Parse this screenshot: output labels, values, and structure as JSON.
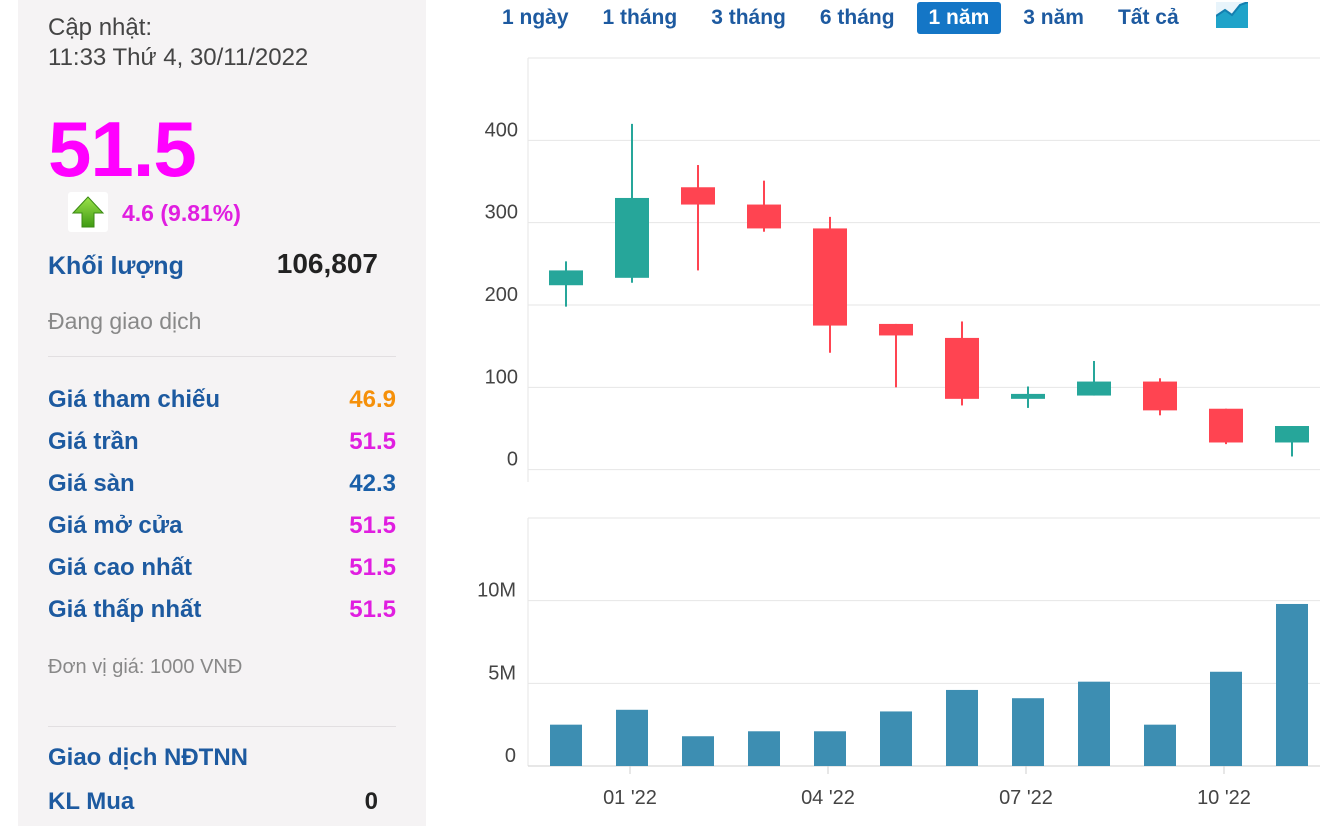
{
  "stock": {
    "update_label": "Cập nhật:",
    "update_time": "11:33 Thứ 4, 30/11/2022",
    "price": "51.5",
    "change": "4.6 (9.81%)",
    "volume_label": "Khối lượng",
    "volume_value": "106,807",
    "status": "Đang giao dịch",
    "rows": [
      {
        "label": "Giá tham chiếu",
        "value": "46.9",
        "color": "#f5900a"
      },
      {
        "label": "Giá trần",
        "value": "51.5",
        "color": "#e01ee0"
      },
      {
        "label": "Giá sàn",
        "value": "42.3",
        "color": "#1a5fa8"
      },
      {
        "label": "Giá mở cửa",
        "value": "51.5",
        "color": "#e01ee0"
      },
      {
        "label": "Giá cao nhất",
        "value": "51.5",
        "color": "#e01ee0"
      },
      {
        "label": "Giá thấp nhất",
        "value": "51.5",
        "color": "#e01ee0"
      }
    ],
    "unit_note": "Đơn vị giá: 1000 VNĐ",
    "foreign_title": "Giao dịch NĐTNN",
    "foreign_buy_label": "KL Mua",
    "foreign_buy_value": "0"
  },
  "ranges": {
    "items": [
      "1 ngày",
      "1 tháng",
      "3 tháng",
      "6 tháng",
      "1 năm",
      "3 năm",
      "Tất cả"
    ],
    "active": "1 năm"
  },
  "colors": {
    "up": "#26a69a",
    "down": "#ff4451",
    "volume": "#3d8eb2",
    "accent": "#1476c6"
  },
  "chart_data": {
    "type": "candlestick",
    "x_tick_labels": [
      "01 '22",
      "04 '22",
      "07 '22",
      "10 '22"
    ],
    "x_tick_index": [
      1,
      4,
      7,
      10
    ],
    "price_axis": {
      "ticks": [
        0,
        100,
        200,
        300,
        400
      ],
      "ylim": [
        -15,
        500
      ]
    },
    "volume_axis": {
      "ticks": [
        0,
        5000000,
        10000000
      ],
      "tick_labels": [
        "0",
        "5M",
        "10M"
      ],
      "ylim": [
        0,
        15000000
      ]
    },
    "candles": [
      {
        "open": 224,
        "high": 253,
        "low": 198,
        "close": 242,
        "volume": 2500000
      },
      {
        "open": 233,
        "high": 420,
        "low": 227,
        "close": 330,
        "volume": 3400000
      },
      {
        "open": 343,
        "high": 370,
        "low": 242,
        "close": 322,
        "volume": 1800000
      },
      {
        "open": 322,
        "high": 351,
        "low": 289,
        "close": 293,
        "volume": 2100000
      },
      {
        "open": 293,
        "high": 307,
        "low": 142,
        "close": 175,
        "volume": 2100000
      },
      {
        "open": 177,
        "high": 177,
        "low": 100,
        "close": 163,
        "volume": 3300000
      },
      {
        "open": 160,
        "high": 180,
        "low": 78,
        "close": 86,
        "volume": 4600000
      },
      {
        "open": 86,
        "high": 101,
        "low": 75,
        "close": 92,
        "volume": 4100000
      },
      {
        "open": 90,
        "high": 132,
        "low": 90,
        "close": 107,
        "volume": 5100000
      },
      {
        "open": 107,
        "high": 111,
        "low": 66,
        "close": 72,
        "volume": 2500000
      },
      {
        "open": 74,
        "high": 74,
        "low": 31,
        "close": 33,
        "volume": 5700000
      },
      {
        "open": 33,
        "high": 53,
        "low": 16,
        "close": 53,
        "volume": 9800000
      }
    ]
  }
}
